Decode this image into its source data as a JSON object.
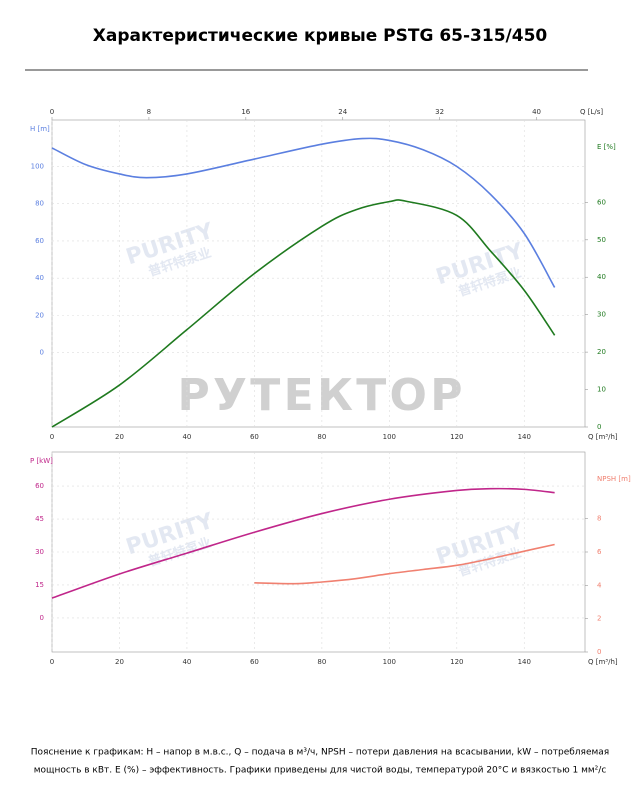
{
  "title": "Характеристические кривые PSTG 65-315/450",
  "caption": [
    "Пояснение к графикам: H – напор в м.в.с., Q – подача в м³/ч, NPSH – потери давления на всасывании, kW – потребляемая",
    "мощность в кВт. E (%) – эффективность.  Графики приведены для чистой воды, температурой 20°C и вязкостью 1 мм²/с"
  ],
  "watermark": "РУТЕКТОР",
  "logo": [
    "PURITY",
    "普轩特泵业"
  ],
  "chart_data": [
    {
      "type": "line",
      "grid": true,
      "xlabel": "Q [m³/h]",
      "xlim": [
        0,
        158
      ],
      "xticks": [
        0,
        20,
        40,
        60,
        80,
        100,
        120,
        140
      ],
      "x2label": "Q [L/s]",
      "x2lim": [
        0,
        44
      ],
      "x2ticks": [
        0,
        8,
        16,
        24,
        32,
        40
      ],
      "ylabel": "H [m]",
      "ylim": [
        -40,
        125
      ],
      "yticks": [
        0,
        20,
        40,
        60,
        80,
        100
      ],
      "y2label": "E [%]",
      "y2lim": [
        0,
        82
      ],
      "y2ticks": [
        0,
        10,
        20,
        30,
        40,
        50,
        60
      ],
      "series": [
        {
          "color": "#5b7fe0",
          "axis": "y",
          "x": [
            0,
            10,
            20,
            28,
            40,
            60,
            80,
            92,
            100,
            110,
            120,
            130,
            140,
            149
          ],
          "values": [
            110,
            101,
            96,
            94,
            96,
            104,
            112,
            115,
            114,
            109,
            100,
            85,
            64,
            35
          ]
        },
        {
          "color": "#1f7a1f",
          "axis": "y2",
          "x": [
            0,
            20,
            40,
            60,
            80,
            90,
            100,
            105,
            120,
            130,
            140,
            149
          ],
          "values": [
            0,
            11.2,
            26,
            41,
            53.6,
            58,
            60.2,
            60.3,
            56.5,
            47,
            36.5,
            24.5
          ]
        }
      ]
    },
    {
      "type": "line",
      "grid": true,
      "xlabel": "Q [m³/h]",
      "xlim": [
        0,
        158
      ],
      "xticks": [
        0,
        20,
        40,
        60,
        80,
        100,
        120,
        140
      ],
      "ylabel": "P [kW]",
      "ylim": [
        -15.5,
        75.5
      ],
      "yticks": [
        0,
        15,
        30,
        45,
        60
      ],
      "y2label": "NPSH [m]",
      "y2lim": [
        0,
        12
      ],
      "y2ticks": [
        0,
        2,
        4,
        6,
        8
      ],
      "series": [
        {
          "color": "#c0268a",
          "axis": "y",
          "x": [
            0,
            20,
            40,
            60,
            80,
            100,
            120,
            130,
            140,
            149
          ],
          "values": [
            9,
            20,
            29.5,
            39,
            47.5,
            54,
            58,
            58.8,
            58.5,
            57
          ]
        },
        {
          "color": "#f08070",
          "axis": "y2",
          "x": [
            60,
            72,
            80,
            90,
            100,
            110,
            120,
            130,
            140,
            149
          ],
          "values": [
            4.15,
            4.1,
            4.2,
            4.4,
            4.7,
            4.95,
            5.2,
            5.6,
            6.05,
            6.45
          ]
        }
      ]
    }
  ]
}
